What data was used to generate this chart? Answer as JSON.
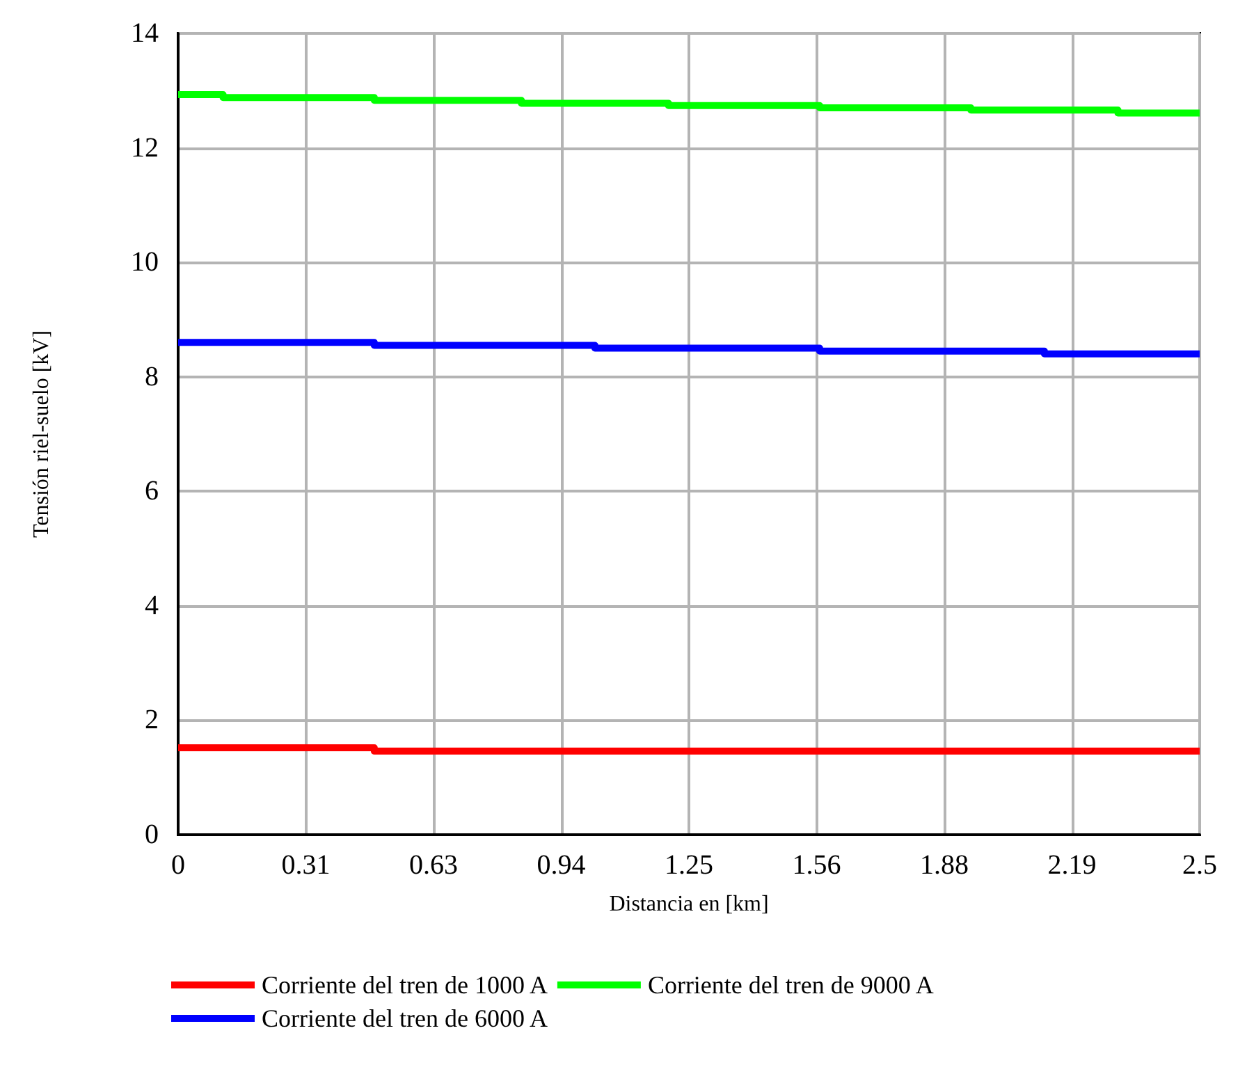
{
  "chart_data": {
    "type": "step",
    "xlabel": "Distancia en [km]",
    "ylabel": "Tensión riel-suelo [kV]",
    "xlim": [
      0,
      2.5
    ],
    "ylim": [
      0,
      14
    ],
    "xticks": [
      0,
      {
        "value": 0.3125,
        "label": "0.31"
      },
      {
        "value": 0.625,
        "label": "0.63"
      },
      {
        "value": 0.9375,
        "label": "0.94"
      },
      1.25,
      {
        "value": 1.5625,
        "label": "1.56"
      },
      {
        "value": 1.875,
        "label": "1.88"
      },
      {
        "value": 2.1875,
        "label": "2.19"
      },
      2.5
    ],
    "yticks": [
      0,
      2,
      4,
      6,
      8,
      10,
      12,
      14
    ],
    "grid": true,
    "legend": "bottom left",
    "marker": "none",
    "line_style": "solid",
    "series": [
      {
        "name": "Corriente del tren de 1000 A",
        "color": "#ff0000",
        "x": [
          0,
          0.48,
          2.5
        ],
        "values": [
          1.52,
          1.46,
          1.46
        ]
      },
      {
        "name": "Corriente del tren de 6000 A",
        "color": "#0000ff",
        "x": [
          0,
          0.48,
          1.02,
          1.57,
          2.12,
          2.5
        ],
        "values": [
          8.6,
          8.55,
          8.5,
          8.45,
          8.4,
          8.4
        ]
      },
      {
        "name": "Corriente del tren de 9000 A",
        "color": "#00ff00",
        "x": [
          0,
          0.11,
          0.48,
          0.84,
          1.2,
          1.57,
          1.94,
          2.3,
          2.5
        ],
        "values": [
          12.93,
          12.88,
          12.83,
          12.78,
          12.74,
          12.7,
          12.66,
          12.61,
          12.61
        ]
      }
    ]
  }
}
